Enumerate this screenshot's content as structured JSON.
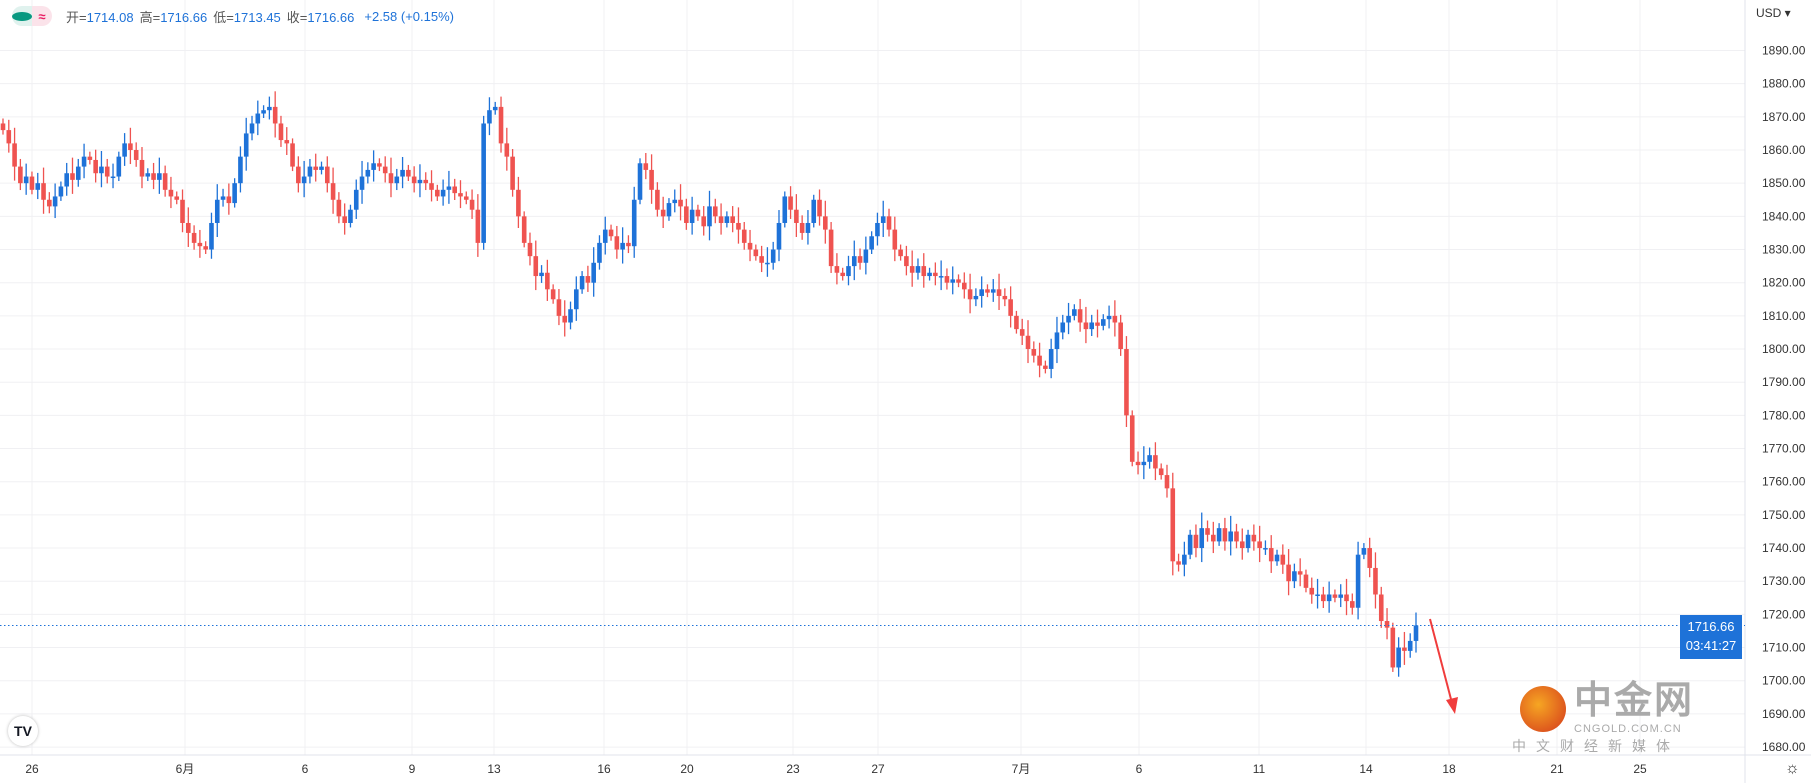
{
  "header": {
    "open_label": "开=",
    "open": "1714.08",
    "high_label": "高=",
    "high": "1716.66",
    "low_label": "低=",
    "low": "1713.45",
    "close_label": "收=",
    "close": "1716.66",
    "change": "+2.58 (+0.15%)",
    "status_icon": "green-dot-icon",
    "wave_icon": "≈"
  },
  "currency": "USD",
  "last_price": {
    "value": "1716.66",
    "countdown": "03:41:27"
  },
  "logo_text": "TV",
  "watermark": {
    "name": "中金网",
    "domain": "CNGOLD.COM.CN",
    "tagline": "中文财经新媒体"
  },
  "colors": {
    "up": "#1e72d8",
    "down": "#ef5350",
    "last_price": "#1e72d8",
    "arrow": "#f03c3c"
  },
  "chart_data": {
    "type": "candlestick",
    "title": "",
    "ylim": [
      1677,
      1897
    ],
    "grid": true,
    "y_ticks": [
      "1890.00",
      "1880.00",
      "1870.00",
      "1860.00",
      "1850.00",
      "1840.00",
      "1830.00",
      "1820.00",
      "1810.00",
      "1800.00",
      "1790.00",
      "1780.00",
      "1770.00",
      "1760.00",
      "1750.00",
      "1740.00",
      "1730.00",
      "1720.00",
      "1710.00",
      "1700.00",
      "1690.00",
      "1680.00"
    ],
    "x_ticks": [
      "26",
      "6月",
      "6",
      "9",
      "13",
      "16",
      "20",
      "23",
      "27",
      "7月",
      "6",
      "11",
      "14",
      "18",
      "21",
      "25"
    ],
    "first_open": 1868,
    "closes": [
      1866,
      1862,
      1855,
      1850,
      1852,
      1848,
      1850,
      1845,
      1843,
      1846,
      1849,
      1853,
      1851,
      1855,
      1858,
      1857,
      1853,
      1855,
      1852,
      1852,
      1858,
      1862,
      1860,
      1857,
      1852,
      1853,
      1851,
      1853,
      1848,
      1846,
      1845,
      1838,
      1835,
      1832,
      1831,
      1830,
      1838,
      1845,
      1846,
      1844,
      1850,
      1858,
      1865,
      1868,
      1871,
      1872,
      1873,
      1868,
      1863,
      1862,
      1855,
      1850,
      1852,
      1855,
      1854,
      1855,
      1850,
      1845,
      1840,
      1838,
      1842,
      1848,
      1852,
      1854,
      1856,
      1855,
      1853,
      1850,
      1852,
      1854,
      1852,
      1850,
      1851,
      1850,
      1848,
      1846,
      1848,
      1849,
      1847,
      1846,
      1845,
      1842,
      1832,
      1868,
      1872,
      1873,
      1862,
      1858,
      1848,
      1840,
      1832,
      1828,
      1822,
      1823,
      1818,
      1815,
      1810,
      1808,
      1812,
      1818,
      1822,
      1820,
      1826,
      1832,
      1836,
      1834,
      1830,
      1832,
      1831,
      1845,
      1856,
      1854,
      1848,
      1842,
      1840,
      1844,
      1845,
      1843,
      1838,
      1842,
      1840,
      1837,
      1843,
      1840,
      1838,
      1840,
      1838,
      1836,
      1832,
      1830,
      1828,
      1826,
      1826,
      1830,
      1838,
      1846,
      1842,
      1838,
      1835,
      1838,
      1845,
      1840,
      1836,
      1825,
      1823,
      1822,
      1825,
      1828,
      1826,
      1830,
      1834,
      1838,
      1840,
      1836,
      1830,
      1828,
      1825,
      1823,
      1825,
      1822,
      1823,
      1822,
      1822,
      1820,
      1821,
      1820,
      1818,
      1815,
      1816,
      1818,
      1817,
      1818,
      1816,
      1815,
      1810,
      1806,
      1804,
      1800,
      1798,
      1795,
      1794,
      1800,
      1805,
      1808,
      1810,
      1812,
      1808,
      1806,
      1808,
      1807,
      1809,
      1810,
      1808,
      1800,
      1780,
      1766,
      1765,
      1766,
      1768,
      1764,
      1762,
      1758,
      1736,
      1735,
      1738,
      1744,
      1740,
      1746,
      1744,
      1742,
      1746,
      1742,
      1745,
      1742,
      1740,
      1744,
      1742,
      1740,
      1740,
      1736,
      1738,
      1735,
      1730,
      1733,
      1732,
      1728,
      1726,
      1726,
      1724,
      1726,
      1725,
      1726,
      1724,
      1722,
      1738,
      1740,
      1734,
      1726,
      1718,
      1716,
      1704,
      1710,
      1709,
      1712,
      1716.66
    ],
    "annotation": "down-arrow"
  }
}
